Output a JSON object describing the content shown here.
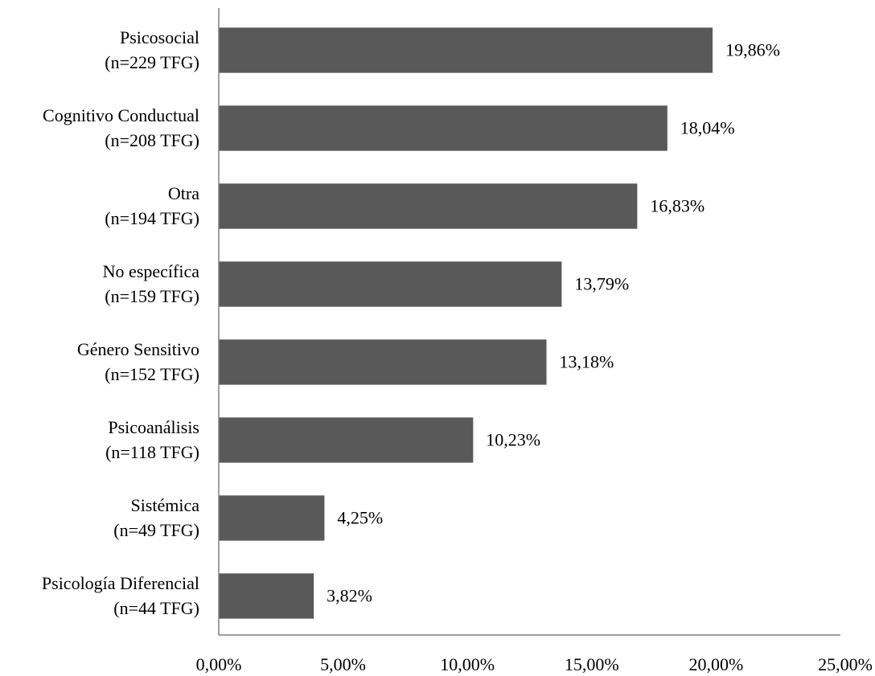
{
  "chart_data": {
    "type": "bar",
    "orientation": "horizontal",
    "categories": [
      [
        "Psicosocial",
        "(n=229 TFG)"
      ],
      [
        "Cognitivo Conductual",
        "(n=208 TFG)"
      ],
      [
        "Otra",
        "(n=194 TFG)"
      ],
      [
        "No específica",
        "(n=159 TFG)"
      ],
      [
        "Género Sensitivo",
        "(n=152 TFG)"
      ],
      [
        "Psicoanálisis",
        "(n=118 TFG)"
      ],
      [
        "Sistémica",
        "(n=49 TFG)"
      ],
      [
        "Psicología Diferencial",
        "(n=44 TFG)"
      ]
    ],
    "values": [
      19.86,
      18.04,
      16.83,
      13.79,
      13.18,
      10.23,
      4.25,
      3.82
    ],
    "value_labels": [
      "19,86%",
      "18,04%",
      "16,83%",
      "13,79%",
      "13,18%",
      "10,23%",
      "4,25%",
      "3,82%"
    ],
    "xlim": [
      0,
      25
    ],
    "xticks": [
      0,
      5,
      10,
      15,
      20,
      25
    ],
    "xtick_labels": [
      "0,00%",
      "5,00%",
      "10,00%",
      "15,00%",
      "20,00%",
      "25,00%"
    ],
    "title": "",
    "xlabel": "",
    "ylabel": "",
    "grid": false,
    "legend": "none",
    "bar_color": "#595959",
    "axis_color": "#808080"
  }
}
